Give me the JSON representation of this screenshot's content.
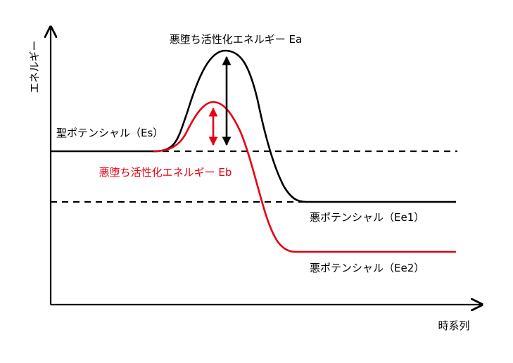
{
  "axes": {
    "y_label": "エネルギー",
    "x_label": "時系列"
  },
  "labels": {
    "ea": "悪堕ち活性化エネルギー Ea",
    "eb": "悪堕ち活性化エネルギー Eb",
    "es": "聖ポテンシャル（Es）",
    "ee1": "悪ポテンシャル（Ee1）",
    "ee2": "悪ポテンシャル（Ee2）"
  },
  "colors": {
    "axis": "#000000",
    "curve_a": "#000000",
    "curve_b": "#e60012",
    "label_eb": "#e60012"
  }
}
